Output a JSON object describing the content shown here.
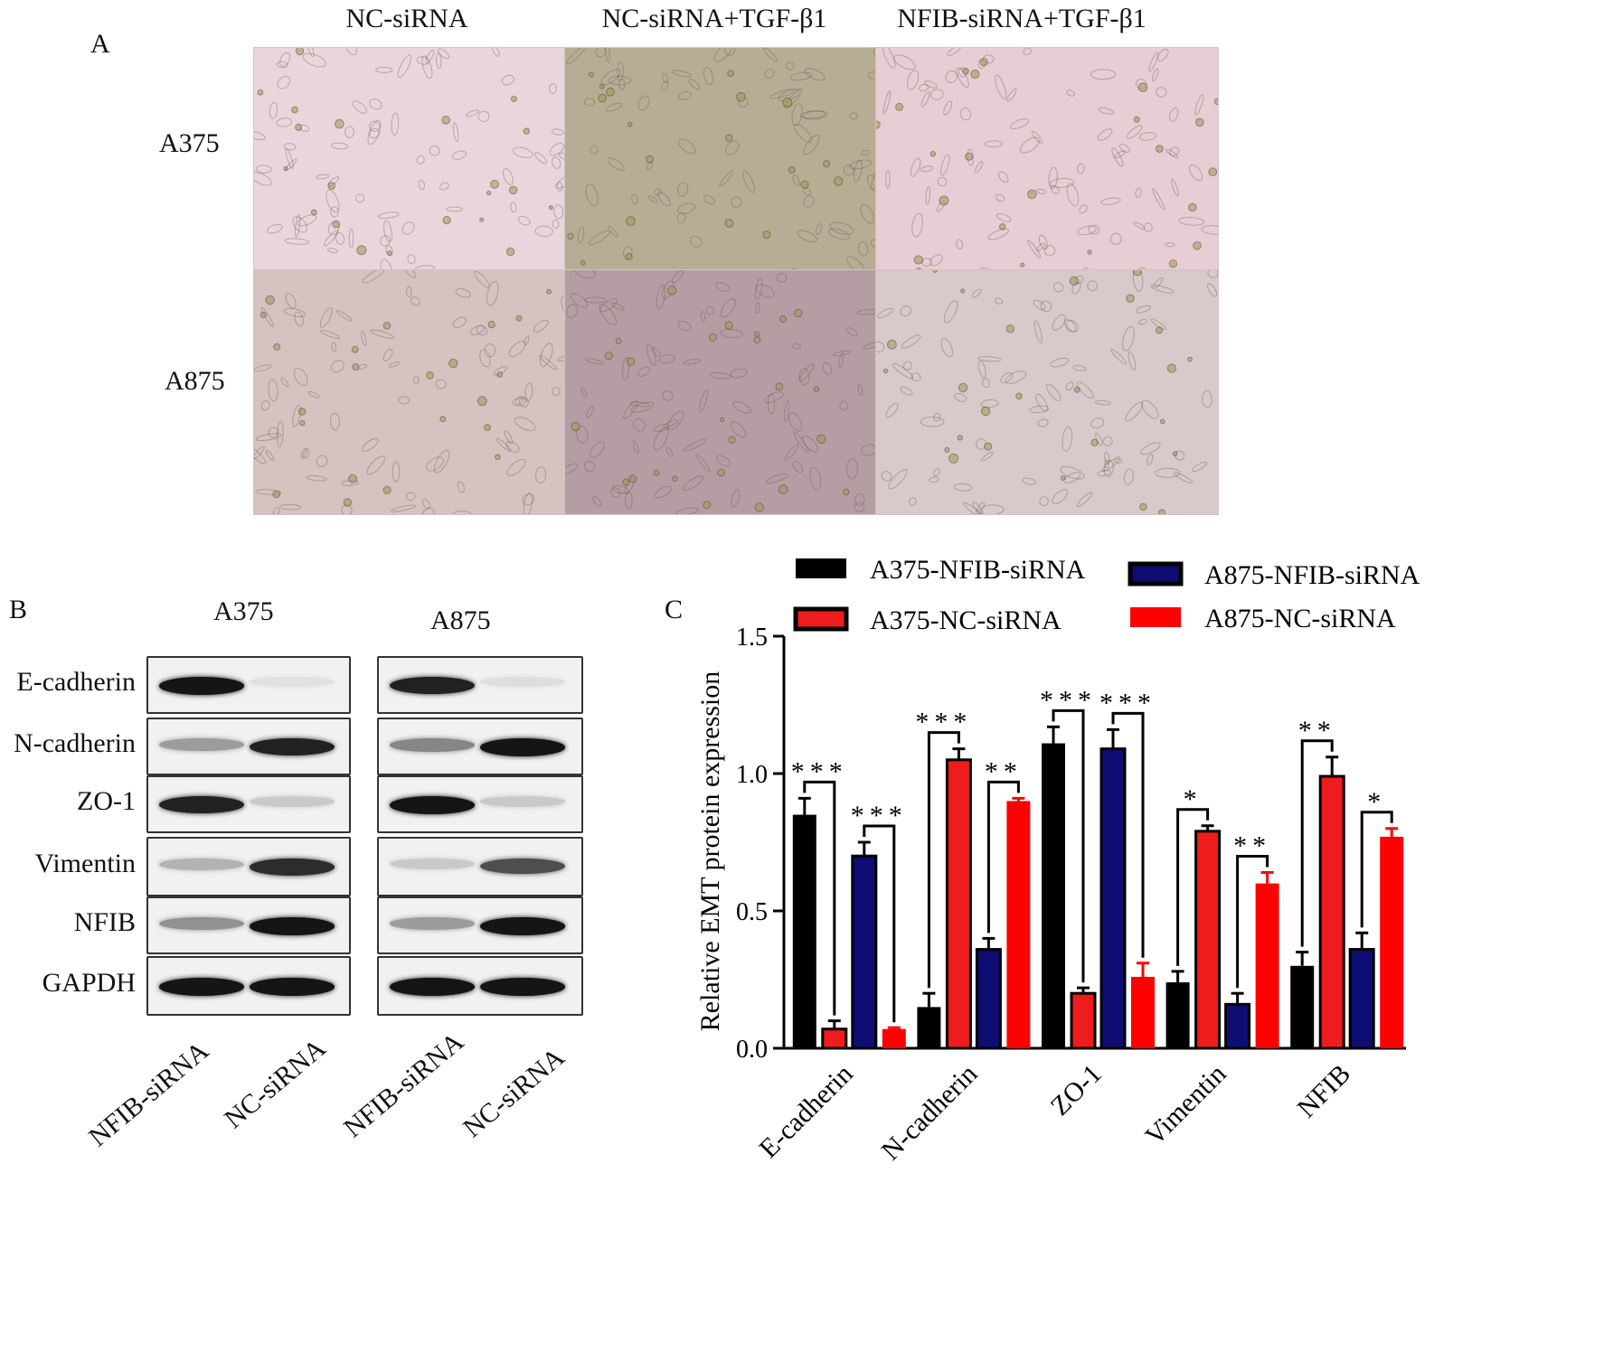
{
  "panel_a": {
    "letter": "A",
    "columns": [
      "NC-siRNA",
      "NC-siRNA+TGF-β1",
      "NFIB-siRNA+TGF-β1"
    ],
    "rows": [
      "A375",
      "A875"
    ],
    "image_tints": [
      [
        "#e9d6dc",
        "#b7ad95",
        "#e7cdd4"
      ],
      [
        "#d6c2c0",
        "#b49ea4",
        "#d9c9ca"
      ]
    ]
  },
  "panel_b": {
    "letter": "B",
    "blots": [
      {
        "title": "A375",
        "lanes": [
          "NFIB-siRNA",
          "NC-siRNA"
        ],
        "intensity": [
          [
            0.95,
            0.05
          ],
          [
            0.35,
            0.9
          ],
          [
            0.9,
            0.15
          ],
          [
            0.25,
            0.85
          ],
          [
            0.4,
            0.95
          ],
          [
            0.95,
            0.95
          ]
        ]
      },
      {
        "title": "A875",
        "lanes": [
          "NFIB-siRNA",
          "NC-siRNA"
        ],
        "intensity": [
          [
            0.9,
            0.06
          ],
          [
            0.45,
            0.95
          ],
          [
            0.95,
            0.15
          ],
          [
            0.15,
            0.7
          ],
          [
            0.35,
            0.95
          ],
          [
            0.95,
            0.95
          ]
        ]
      }
    ],
    "proteins": [
      "E-cadherin",
      "N-cadherin",
      "ZO-1",
      "Vimentin",
      "NFIB",
      "GAPDH"
    ]
  },
  "panel_c": {
    "letter": "C",
    "chart_data": {
      "type": "bar",
      "categories": [
        "E-cadherin",
        "N-cadherin",
        "ZO-1",
        "Vimentin",
        "NFIB"
      ],
      "series": [
        {
          "name": "A375-NFIB-siRNA",
          "color": "#000000",
          "fill": "#000000",
          "values": [
            0.85,
            0.15,
            1.11,
            0.24,
            0.3
          ],
          "errors": [
            0.06,
            0.05,
            0.06,
            0.04,
            0.05
          ]
        },
        {
          "name": "A375-NC-siRNA",
          "color": "#000000",
          "fill": "#ee1c1c",
          "values": [
            0.07,
            1.05,
            0.2,
            0.79,
            0.99
          ],
          "errors": [
            0.03,
            0.04,
            0.02,
            0.02,
            0.07
          ]
        },
        {
          "name": "A875-NFIB-siRNA",
          "color": "#000000",
          "fill": "#0d0d73",
          "values": [
            0.7,
            0.36,
            1.09,
            0.16,
            0.36
          ],
          "errors": [
            0.05,
            0.04,
            0.07,
            0.04,
            0.06
          ]
        },
        {
          "name": "A875-NC-siRNA",
          "color": "#ff0000",
          "fill": "#ff0000",
          "values": [
            0.07,
            0.9,
            0.26,
            0.6,
            0.77
          ],
          "errors": [
            0.005,
            0.01,
            0.05,
            0.04,
            0.03
          ]
        }
      ],
      "significance": [
        {
          "category": 0,
          "pair": "A375",
          "label": "***"
        },
        {
          "category": 0,
          "pair": "A875",
          "label": "***"
        },
        {
          "category": 1,
          "pair": "A375",
          "label": "***"
        },
        {
          "category": 1,
          "pair": "A875",
          "label": "**"
        },
        {
          "category": 2,
          "pair": "A375",
          "label": "***"
        },
        {
          "category": 2,
          "pair": "A875",
          "label": "***"
        },
        {
          "category": 3,
          "pair": "A375",
          "label": "*"
        },
        {
          "category": 3,
          "pair": "A875",
          "label": "**"
        },
        {
          "category": 4,
          "pair": "A375",
          "label": "**"
        },
        {
          "category": 4,
          "pair": "A875",
          "label": "*"
        }
      ],
      "ylabel": "Relative EMT protein expression",
      "ylim": [
        0,
        1.5
      ],
      "yticks": [
        "0.0",
        "0.5",
        "1.0",
        "1.5"
      ],
      "legend_placement": "top"
    }
  }
}
